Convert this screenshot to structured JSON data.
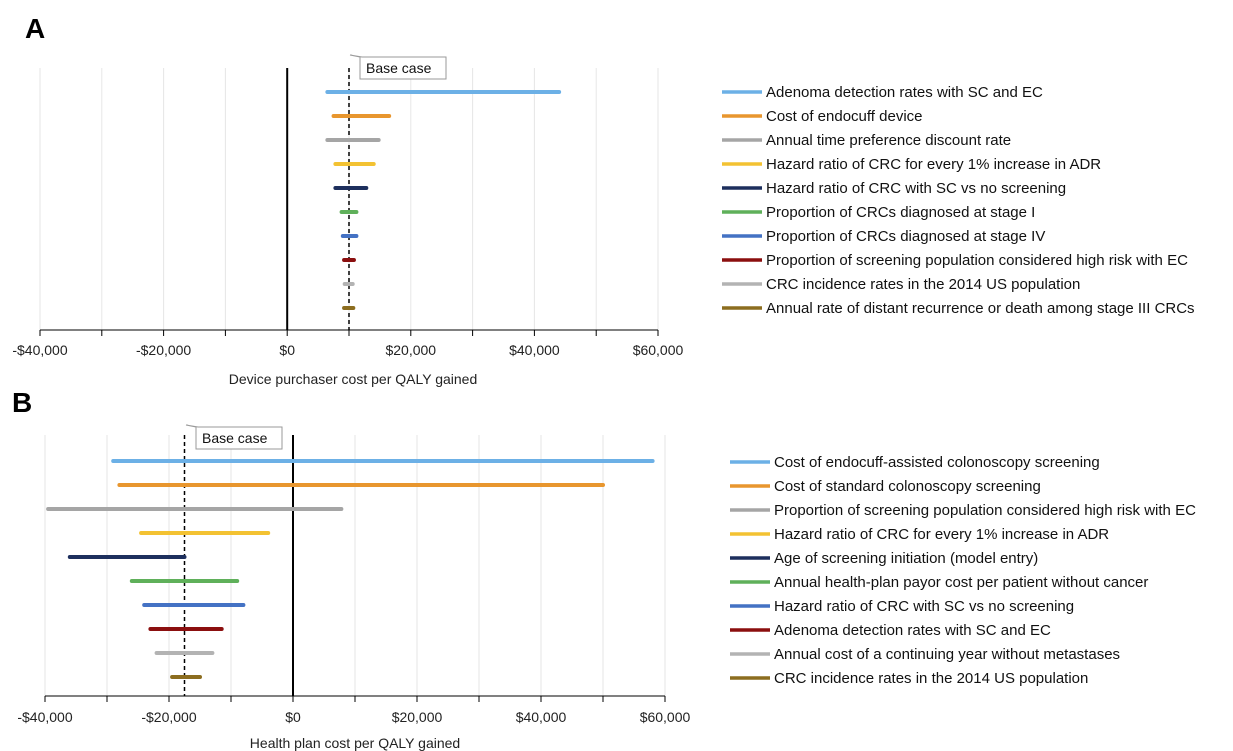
{
  "chart_data": [
    {
      "panel_label": "A",
      "type": "bar",
      "subtype": "tornado",
      "xlabel": "Device purchaser cost per QALY gained",
      "xlim": [
        -40000,
        60000
      ],
      "xticks": [
        -40000,
        -20000,
        0,
        20000,
        40000,
        60000
      ],
      "xtick_labels": [
        "-$40,000",
        "-$20,000",
        "$0",
        "$20,000",
        "$40,000",
        "$60,000"
      ],
      "grid": true,
      "legend_placement": "right",
      "base_case": {
        "label": "Base case",
        "value": 10000
      },
      "series": [
        {
          "name": "Adenoma detection rates with SC and EC",
          "low": 6500,
          "high": 44000,
          "color": "#6cb0e6"
        },
        {
          "name": "Cost of endocuff device",
          "low": 7500,
          "high": 16500,
          "color": "#e8962e"
        },
        {
          "name": "Annual time preference discount rate",
          "low": 6500,
          "high": 14800,
          "color": "#a5a5a5"
        },
        {
          "name": "Hazard ratio of CRC for every 1% increase in ADR",
          "low": 7800,
          "high": 14000,
          "color": "#f3c232"
        },
        {
          "name": "Hazard ratio of CRC with SC vs no screening",
          "low": 7800,
          "high": 12800,
          "color": "#1d2f5d"
        },
        {
          "name": "Proportion of CRCs diagnosed at stage I",
          "low": 8800,
          "high": 11200,
          "color": "#5fb05a"
        },
        {
          "name": "Proportion of CRCs diagnosed at stage IV",
          "low": 9000,
          "high": 11200,
          "color": "#4472c4"
        },
        {
          "name": "Proportion of screening population considered high risk with EC",
          "low": 9200,
          "high": 10800,
          "color": "#8b0f0f"
        },
        {
          "name": "CRC incidence rates in the 2014 US population",
          "low": 9300,
          "high": 10600,
          "color": "#b3b3b3"
        },
        {
          "name": "Annual rate of distant recurrence or death among stage III CRCs",
          "low": 9200,
          "high": 10700,
          "color": "#8c6d1f"
        }
      ]
    },
    {
      "panel_label": "B",
      "type": "bar",
      "subtype": "tornado",
      "xlabel": "Health plan cost per QALY gained",
      "xlim": [
        -40000,
        60000
      ],
      "xticks": [
        -40000,
        -20000,
        0,
        20000,
        40000,
        60000
      ],
      "xtick_labels": [
        "-$40,000",
        "-$20,000",
        "$0",
        "$20,000",
        "$40,000",
        "$60,000"
      ],
      "grid": true,
      "legend_placement": "right",
      "base_case": {
        "label": "Base case",
        "value": -17500
      },
      "series": [
        {
          "name": "Cost of endocuff-assisted colonoscopy screening",
          "low": -29000,
          "high": 58000,
          "color": "#6cb0e6"
        },
        {
          "name": "Cost of standard colonoscopy screening",
          "low": -28000,
          "high": 50000,
          "color": "#e8962e"
        },
        {
          "name": "Proportion of screening population considered high risk with EC",
          "low": -39500,
          "high": 7800,
          "color": "#a5a5a5"
        },
        {
          "name": "Hazard ratio of CRC for every 1% increase in ADR",
          "low": -24500,
          "high": -4000,
          "color": "#f3c232"
        },
        {
          "name": "Age of screening initiation (model entry)",
          "low": -36000,
          "high": -17500,
          "color": "#1d2f5d"
        },
        {
          "name": "Annual health-plan payor cost per patient without cancer",
          "low": -26000,
          "high": -9000,
          "color": "#5fb05a"
        },
        {
          "name": "Hazard ratio of CRC with SC vs no screening",
          "low": -24000,
          "high": -8000,
          "color": "#4472c4"
        },
        {
          "name": "Adenoma detection rates with SC and EC",
          "low": -23000,
          "high": -11500,
          "color": "#8b0f0f"
        },
        {
          "name": "Annual cost of a continuing year without metastases",
          "low": -22000,
          "high": -13000,
          "color": "#b3b3b3"
        },
        {
          "name": "CRC incidence rates in the 2014 US population",
          "low": -19500,
          "high": -15000,
          "color": "#8c6d1f"
        }
      ]
    }
  ]
}
